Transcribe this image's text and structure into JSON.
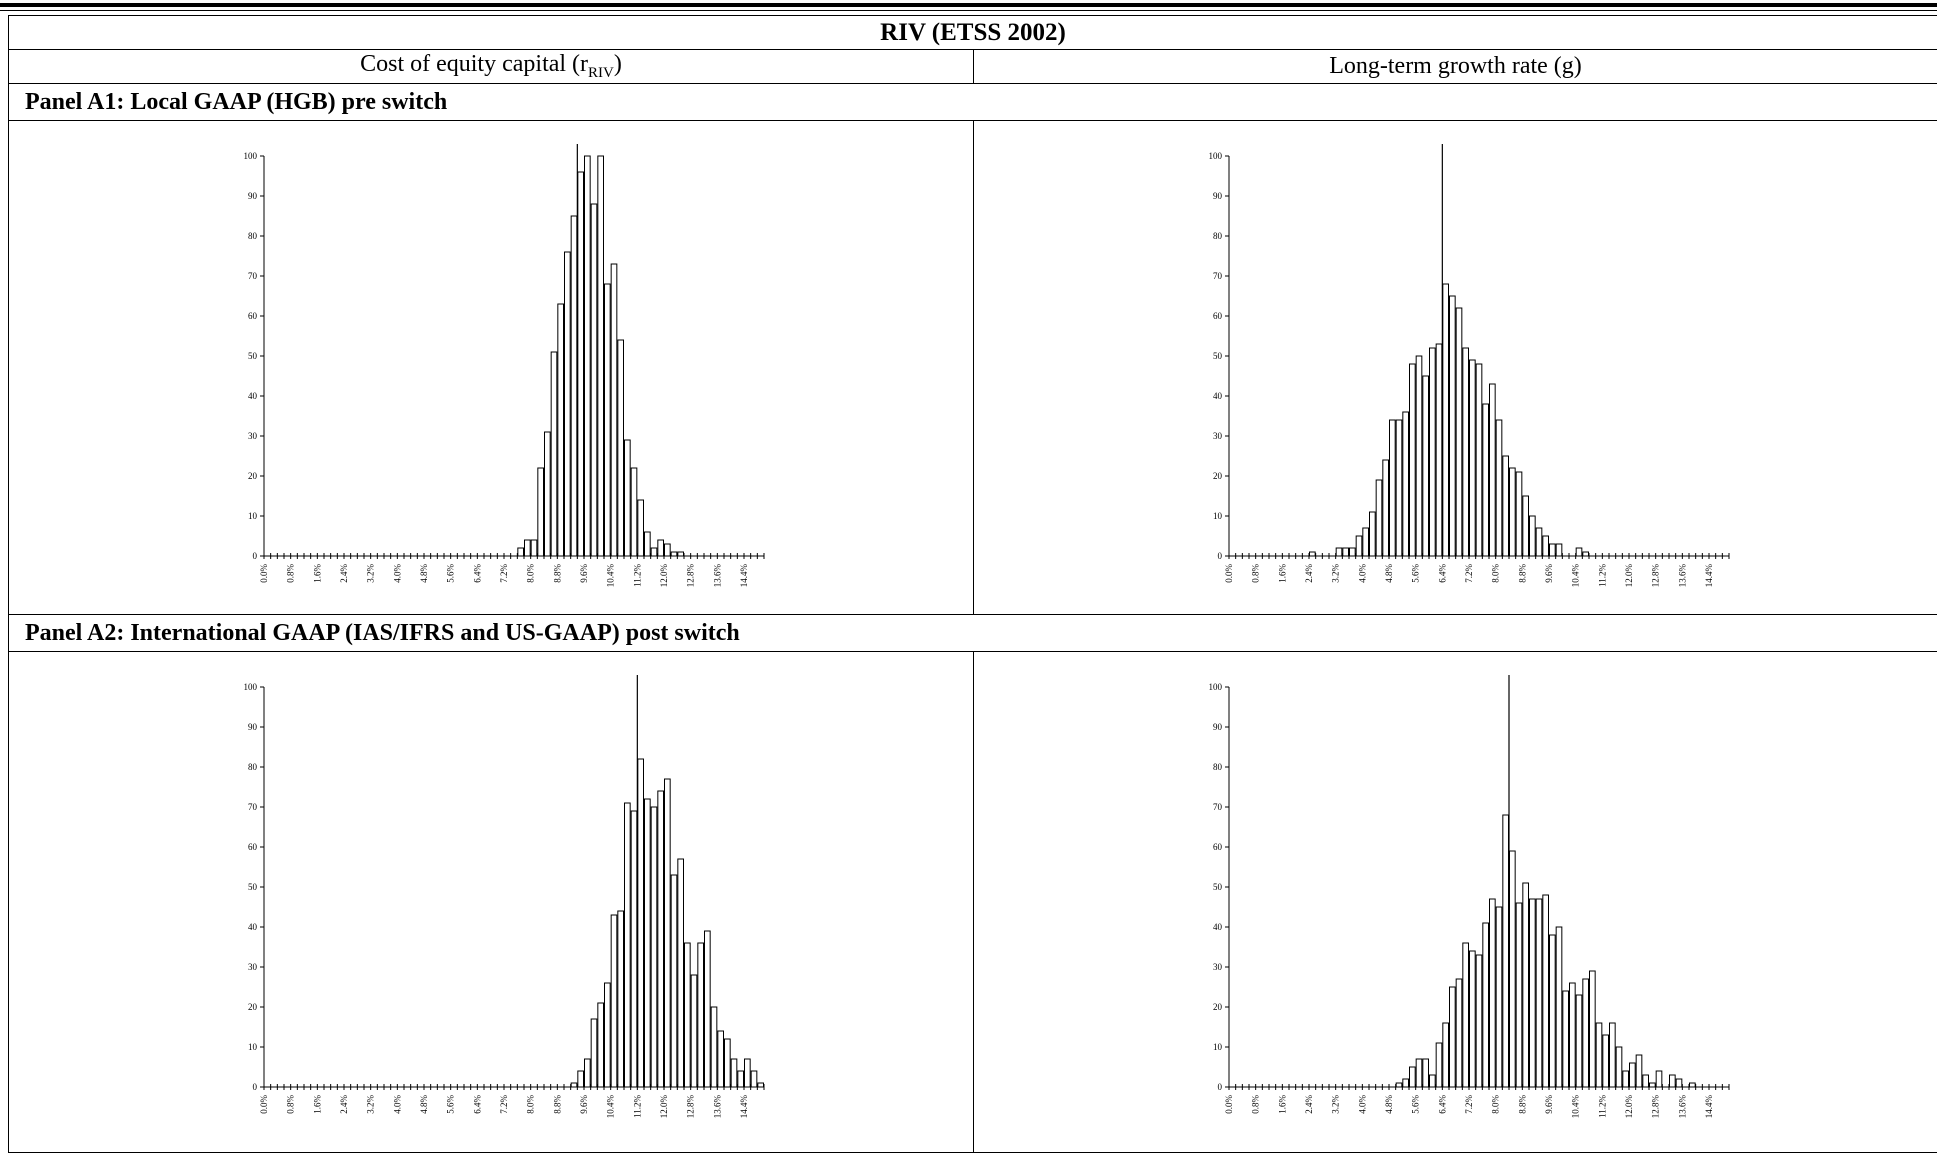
{
  "table": {
    "title": "RIV (ETSS 2002)",
    "col_left": "Cost of equity capital (r",
    "col_left_sub": "RIV",
    "col_left_end": ")",
    "col_right": "Long-term growth rate (g)",
    "panel_a1": "Panel A1: Local GAAP (HGB) pre switch",
    "panel_a2": "Panel A2: International GAAP (IAS/IFRS and US-GAAP) post switch"
  },
  "chart_data": [
    {
      "id": "a1-r",
      "type": "bar",
      "title": "",
      "xlabel": "",
      "ylabel": "",
      "ylim": [
        0,
        100
      ],
      "yticks": [
        0,
        10,
        20,
        30,
        40,
        50,
        60,
        70,
        80,
        90,
        100
      ],
      "xlim": [
        0.0,
        15.0
      ],
      "bin_width": 0.2,
      "xtick_labels": [
        "0.0%",
        "0.8%",
        "1.6%",
        "2.4%",
        "3.2%",
        "4.0%",
        "4.8%",
        "5.6%",
        "6.4%",
        "7.2%",
        "8.0%",
        "8.8%",
        "9.6%",
        "10.4%",
        "11.2%",
        "12.0%",
        "12.8%",
        "13.6%",
        "14.4%"
      ],
      "vline": 9.4,
      "bins": [
        [
          7.6,
          2
        ],
        [
          7.8,
          4
        ],
        [
          8.0,
          4
        ],
        [
          8.2,
          22
        ],
        [
          8.4,
          31
        ],
        [
          8.6,
          51
        ],
        [
          8.8,
          63
        ],
        [
          9.0,
          76
        ],
        [
          9.2,
          85
        ],
        [
          9.4,
          96
        ],
        [
          9.6,
          100
        ],
        [
          9.8,
          88
        ],
        [
          10.0,
          100
        ],
        [
          10.2,
          68
        ],
        [
          10.4,
          73
        ],
        [
          10.6,
          54
        ],
        [
          10.8,
          29
        ],
        [
          11.0,
          22
        ],
        [
          11.2,
          14
        ],
        [
          11.4,
          6
        ],
        [
          11.6,
          2
        ],
        [
          11.8,
          4
        ],
        [
          12.0,
          3
        ],
        [
          12.2,
          1
        ],
        [
          12.4,
          1
        ]
      ]
    },
    {
      "id": "a1-g",
      "type": "bar",
      "title": "",
      "xlabel": "",
      "ylabel": "",
      "ylim": [
        0,
        100
      ],
      "yticks": [
        0,
        10,
        20,
        30,
        40,
        50,
        60,
        70,
        80,
        90,
        100
      ],
      "xlim": [
        0.0,
        15.0
      ],
      "bin_width": 0.2,
      "xtick_labels": [
        "0.0%",
        "0.8%",
        "1.6%",
        "2.4%",
        "3.2%",
        "4.0%",
        "4.8%",
        "5.6%",
        "6.4%",
        "7.2%",
        "8.0%",
        "8.8%",
        "9.6%",
        "10.4%",
        "11.2%",
        "12.0%",
        "12.8%",
        "13.6%",
        "14.4%"
      ],
      "vline": 6.4,
      "bins": [
        [
          2.4,
          1
        ],
        [
          3.2,
          2
        ],
        [
          3.4,
          2
        ],
        [
          3.6,
          2
        ],
        [
          3.8,
          5
        ],
        [
          4.0,
          7
        ],
        [
          4.2,
          11
        ],
        [
          4.4,
          19
        ],
        [
          4.6,
          24
        ],
        [
          4.8,
          34
        ],
        [
          5.0,
          34
        ],
        [
          5.2,
          36
        ],
        [
          5.4,
          48
        ],
        [
          5.6,
          50
        ],
        [
          5.8,
          45
        ],
        [
          6.0,
          52
        ],
        [
          6.2,
          53
        ],
        [
          6.4,
          68
        ],
        [
          6.6,
          65
        ],
        [
          6.8,
          62
        ],
        [
          7.0,
          52
        ],
        [
          7.2,
          49
        ],
        [
          7.4,
          48
        ],
        [
          7.6,
          38
        ],
        [
          7.8,
          43
        ],
        [
          8.0,
          34
        ],
        [
          8.2,
          25
        ],
        [
          8.4,
          22
        ],
        [
          8.6,
          21
        ],
        [
          8.8,
          15
        ],
        [
          9.0,
          10
        ],
        [
          9.2,
          7
        ],
        [
          9.4,
          5
        ],
        [
          9.6,
          3
        ],
        [
          9.8,
          3
        ],
        [
          10.4,
          2
        ],
        [
          10.6,
          1
        ]
      ]
    },
    {
      "id": "a2-r",
      "type": "bar",
      "title": "",
      "xlabel": "",
      "ylabel": "",
      "ylim": [
        0,
        100
      ],
      "yticks": [
        0,
        10,
        20,
        30,
        40,
        50,
        60,
        70,
        80,
        90,
        100
      ],
      "xlim": [
        0.0,
        15.0
      ],
      "bin_width": 0.2,
      "xtick_labels": [
        "0.0%",
        "0.8%",
        "1.6%",
        "2.4%",
        "3.2%",
        "4.0%",
        "4.8%",
        "5.6%",
        "6.4%",
        "7.2%",
        "8.0%",
        "8.8%",
        "9.6%",
        "10.4%",
        "11.2%",
        "12.0%",
        "12.8%",
        "13.6%",
        "14.4%"
      ],
      "vline": 11.2,
      "bins": [
        [
          9.2,
          1
        ],
        [
          9.4,
          4
        ],
        [
          9.6,
          7
        ],
        [
          9.8,
          17
        ],
        [
          10.0,
          21
        ],
        [
          10.2,
          26
        ],
        [
          10.4,
          43
        ],
        [
          10.6,
          44
        ],
        [
          10.8,
          71
        ],
        [
          11.0,
          69
        ],
        [
          11.2,
          82
        ],
        [
          11.4,
          72
        ],
        [
          11.6,
          70
        ],
        [
          11.8,
          74
        ],
        [
          12.0,
          77
        ],
        [
          12.2,
          53
        ],
        [
          12.4,
          57
        ],
        [
          12.6,
          36
        ],
        [
          12.8,
          28
        ],
        [
          13.0,
          36
        ],
        [
          13.2,
          39
        ],
        [
          13.4,
          20
        ],
        [
          13.6,
          14
        ],
        [
          13.8,
          12
        ],
        [
          14.0,
          7
        ],
        [
          14.2,
          4
        ],
        [
          14.4,
          7
        ],
        [
          14.6,
          4
        ],
        [
          14.8,
          1
        ]
      ]
    },
    {
      "id": "a2-g",
      "type": "bar",
      "title": "",
      "xlabel": "",
      "ylabel": "",
      "ylim": [
        0,
        100
      ],
      "yticks": [
        0,
        10,
        20,
        30,
        40,
        50,
        60,
        70,
        80,
        90,
        100
      ],
      "xlim": [
        0.0,
        15.0
      ],
      "bin_width": 0.2,
      "xtick_labels": [
        "0.0%",
        "0.8%",
        "1.6%",
        "2.4%",
        "3.2%",
        "4.0%",
        "4.8%",
        "5.6%",
        "6.4%",
        "7.2%",
        "8.0%",
        "8.8%",
        "9.6%",
        "10.4%",
        "11.2%",
        "12.0%",
        "12.8%",
        "13.6%",
        "14.4%"
      ],
      "vline": 8.4,
      "bins": [
        [
          5.0,
          1
        ],
        [
          5.2,
          2
        ],
        [
          5.4,
          5
        ],
        [
          5.6,
          7
        ],
        [
          5.8,
          7
        ],
        [
          6.0,
          3
        ],
        [
          6.2,
          11
        ],
        [
          6.4,
          16
        ],
        [
          6.6,
          25
        ],
        [
          6.8,
          27
        ],
        [
          7.0,
          36
        ],
        [
          7.2,
          34
        ],
        [
          7.4,
          33
        ],
        [
          7.6,
          41
        ],
        [
          7.8,
          47
        ],
        [
          8.0,
          45
        ],
        [
          8.2,
          68
        ],
        [
          8.4,
          59
        ],
        [
          8.6,
          46
        ],
        [
          8.8,
          51
        ],
        [
          9.0,
          47
        ],
        [
          9.2,
          47
        ],
        [
          9.4,
          48
        ],
        [
          9.6,
          38
        ],
        [
          9.8,
          40
        ],
        [
          10.0,
          24
        ],
        [
          10.2,
          26
        ],
        [
          10.4,
          23
        ],
        [
          10.6,
          27
        ],
        [
          10.8,
          29
        ],
        [
          11.0,
          16
        ],
        [
          11.2,
          13
        ],
        [
          11.4,
          16
        ],
        [
          11.6,
          10
        ],
        [
          11.8,
          4
        ],
        [
          12.0,
          6
        ],
        [
          12.2,
          8
        ],
        [
          12.4,
          3
        ],
        [
          12.6,
          1
        ],
        [
          12.8,
          4
        ],
        [
          13.2,
          3
        ],
        [
          13.4,
          2
        ],
        [
          13.8,
          1
        ]
      ]
    }
  ]
}
